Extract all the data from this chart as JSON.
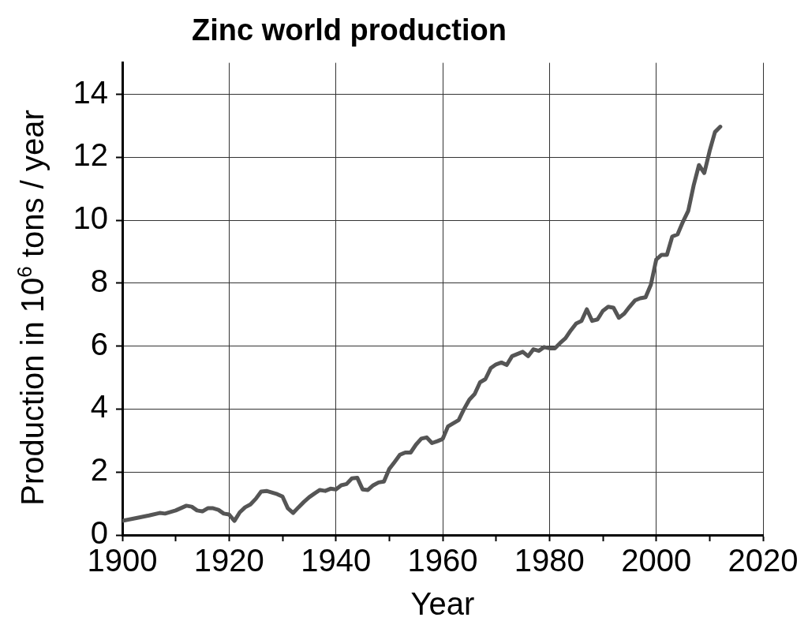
{
  "chart_data": {
    "type": "line",
    "title": "Zinc world production",
    "xlabel": "Year",
    "ylabel": "Production in 10$^{6}$ tons / year",
    "x": [
      1900,
      1903,
      1905,
      1907,
      1908,
      1910,
      1912,
      1913,
      1914,
      1915,
      1916,
      1917,
      1918,
      1919,
      1920,
      1921,
      1922,
      1923,
      1924,
      1925,
      1926,
      1927,
      1928,
      1929,
      1930,
      1931,
      1932,
      1933,
      1934,
      1935,
      1936,
      1937,
      1938,
      1939,
      1940,
      1941,
      1942,
      1943,
      1944,
      1945,
      1946,
      1947,
      1948,
      1949,
      1950,
      1951,
      1952,
      1953,
      1954,
      1955,
      1956,
      1957,
      1958,
      1959,
      1960,
      1961,
      1962,
      1963,
      1964,
      1965,
      1966,
      1967,
      1968,
      1969,
      1970,
      1971,
      1972,
      1973,
      1974,
      1975,
      1976,
      1977,
      1978,
      1979,
      1980,
      1981,
      1982,
      1983,
      1984,
      1985,
      1986,
      1987,
      1988,
      1989,
      1990,
      1991,
      1992,
      1993,
      1994,
      1995,
      1996,
      1997,
      1998,
      1999,
      2000,
      2001,
      2002,
      2003,
      2004,
      2005,
      2006,
      2007,
      2008,
      2009,
      2010,
      2011,
      2012
    ],
    "series": [
      {
        "color": "#555555",
        "values": [
          0.45,
          0.55,
          0.62,
          0.7,
          0.68,
          0.78,
          0.93,
          0.9,
          0.78,
          0.75,
          0.85,
          0.85,
          0.8,
          0.68,
          0.65,
          0.45,
          0.72,
          0.88,
          0.97,
          1.15,
          1.38,
          1.4,
          1.35,
          1.3,
          1.22,
          0.85,
          0.7,
          0.88,
          1.05,
          1.2,
          1.32,
          1.43,
          1.4,
          1.47,
          1.45,
          1.58,
          1.62,
          1.8,
          1.82,
          1.45,
          1.43,
          1.58,
          1.67,
          1.7,
          2.1,
          2.32,
          2.55,
          2.62,
          2.62,
          2.87,
          3.06,
          3.1,
          2.92,
          2.98,
          3.05,
          3.45,
          3.55,
          3.65,
          4.0,
          4.3,
          4.48,
          4.85,
          4.95,
          5.3,
          5.42,
          5.48,
          5.4,
          5.68,
          5.75,
          5.82,
          5.68,
          5.9,
          5.85,
          5.97,
          5.93,
          5.93,
          6.1,
          6.25,
          6.5,
          6.72,
          6.8,
          7.17,
          6.8,
          6.85,
          7.12,
          7.25,
          7.22,
          6.9,
          7.03,
          7.25,
          7.45,
          7.52,
          7.55,
          7.95,
          8.75,
          8.9,
          8.9,
          9.48,
          9.55,
          9.95,
          10.3,
          11.1,
          11.75,
          11.5,
          12.2,
          12.8,
          12.97
        ]
      }
    ],
    "xlim": [
      1900,
      2020
    ],
    "xticks": [
      1900,
      {
        "value": 1910,
        "label": null
      },
      1920,
      {
        "value": 1930,
        "label": null
      },
      1940,
      {
        "value": 1950,
        "label": null
      },
      1960,
      {
        "value": 1970,
        "label": null
      },
      1980,
      {
        "value": 1990,
        "label": null
      },
      2000,
      {
        "value": 2010,
        "label": null
      },
      2020
    ],
    "ylim": [
      0,
      15
    ],
    "yticks": [
      0,
      2,
      4,
      6,
      8,
      10,
      12,
      14
    ],
    "grid": true,
    "legend": false,
    "marker": "none",
    "line_style": "solid"
  }
}
